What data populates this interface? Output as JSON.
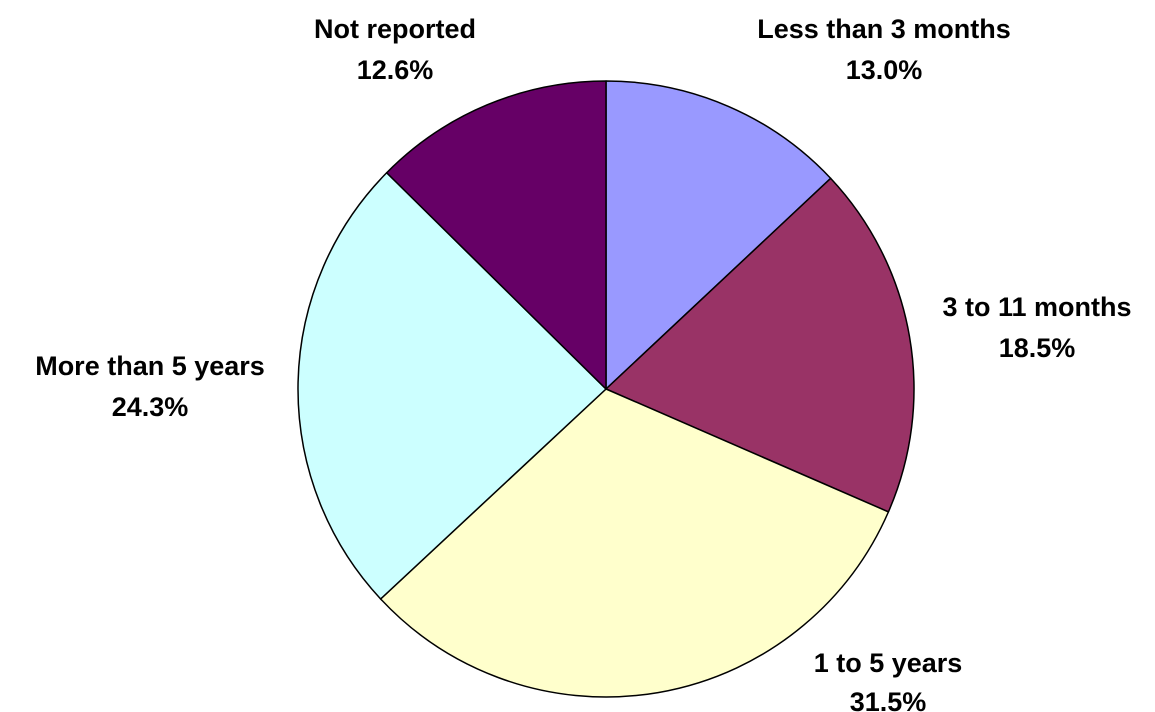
{
  "chart_data": {
    "type": "pie",
    "title": "",
    "start_angle_deg": 0,
    "direction": "clockwise",
    "slices": [
      {
        "label": "Less than 3 months",
        "value": 13.0,
        "value_label": "13.0%",
        "color": "#9999ff"
      },
      {
        "label": "3 to 11 months",
        "value": 18.5,
        "value_label": "18.5%",
        "color": "#993366"
      },
      {
        "label": "1 to 5 years",
        "value": 31.5,
        "value_label": "31.5%",
        "color": "#ffffcc"
      },
      {
        "label": "More than 5 years",
        "value": 24.3,
        "value_label": "24.3%",
        "color": "#ccffff"
      },
      {
        "label": "Not reported",
        "value": 12.6,
        "value_label": "12.6%",
        "color": "#660066"
      }
    ],
    "legend": "none",
    "data_labels": "outside"
  }
}
